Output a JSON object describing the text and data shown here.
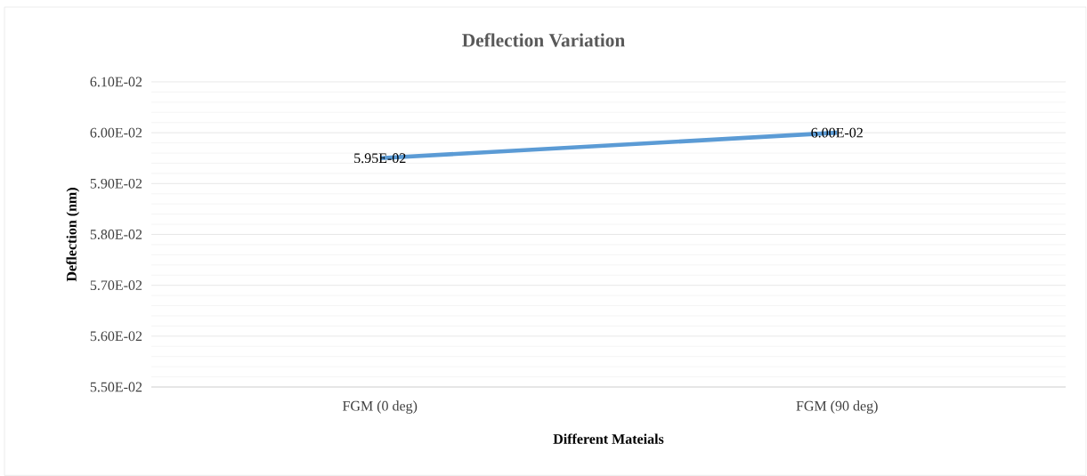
{
  "chart_data": {
    "type": "line",
    "title": "Deflection Variation",
    "xlabel": "Different Mateials",
    "ylabel": "Deflection (nm)",
    "categories": [
      "FGM (0 deg)",
      "FGM (90 deg)"
    ],
    "series": [
      {
        "color": "#5b9bd5",
        "values": [
          0.0595,
          0.06
        ],
        "value_labels": [
          "5.95E-02",
          "6.00E-02"
        ]
      }
    ],
    "ylim": [
      0.055,
      0.061
    ],
    "yticks": [
      {
        "value": 0.055,
        "label": "5.50E-02"
      },
      {
        "value": 0.056,
        "label": "5.60E-02"
      },
      {
        "value": 0.057,
        "label": "5.70E-02"
      },
      {
        "value": 0.058,
        "label": "5.80E-02"
      },
      {
        "value": 0.059,
        "label": "5.90E-02"
      },
      {
        "value": 0.06,
        "label": "6.00E-02"
      },
      {
        "value": 0.061,
        "label": "6.10E-02"
      }
    ],
    "grid": "y"
  }
}
